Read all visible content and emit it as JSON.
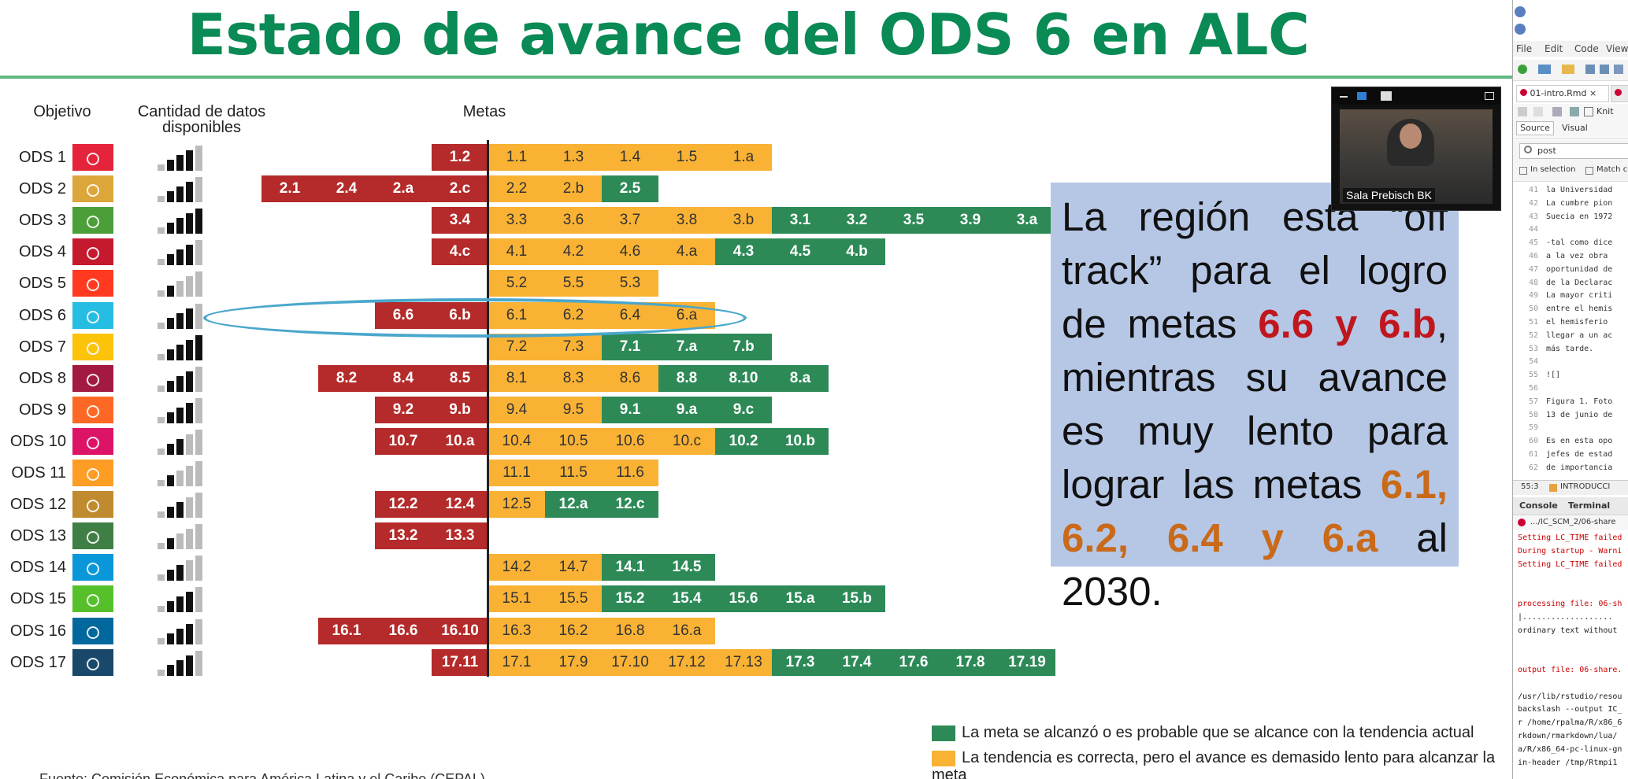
{
  "slide": {
    "title": "Estado de avance del ODS 6 en ALC",
    "headers": {
      "objetivo": "Objetivo",
      "cantidad": "Cantidad de datos disponibles",
      "metas": "Metas"
    },
    "rows": [
      {
        "label": "ODS 1",
        "icon_color": "#e5243b",
        "bars": [
          1,
          2,
          3,
          3,
          1
        ],
        "red": [
          "1.2"
        ],
        "orange": [
          "1.1",
          "1.3",
          "1.4",
          "1.5",
          "1.a"
        ],
        "green": []
      },
      {
        "label": "ODS 2",
        "icon_color": "#dda63a",
        "bars": [
          1,
          2,
          3,
          3,
          1
        ],
        "red": [
          "2.1",
          "2.4",
          "2.a",
          "2.c"
        ],
        "orange": [
          "2.2",
          "2.b"
        ],
        "green": [
          "2.5"
        ]
      },
      {
        "label": "ODS 3",
        "icon_color": "#4c9f38",
        "bars": [
          1,
          2,
          3,
          3,
          3
        ],
        "red": [
          "3.4"
        ],
        "orange": [
          "3.3",
          "3.6",
          "3.7",
          "3.8",
          "3.b"
        ],
        "green": [
          "3.1",
          "3.2",
          "3.5",
          "3.9",
          "3.a"
        ]
      },
      {
        "label": "ODS 4",
        "icon_color": "#c5192d",
        "bars": [
          1,
          2,
          3,
          3,
          1
        ],
        "red": [
          "4.c"
        ],
        "orange": [
          "4.1",
          "4.2",
          "4.6",
          "4.a"
        ],
        "green": [
          "4.3",
          "4.5",
          "4.b"
        ]
      },
      {
        "label": "ODS 5",
        "icon_color": "#ff3a21",
        "bars": [
          1,
          2,
          1,
          1,
          1
        ],
        "red": [],
        "orange": [
          "5.2",
          "5.5",
          "5.3"
        ],
        "green": []
      },
      {
        "label": "ODS 6",
        "icon_color": "#26bde2",
        "bars": [
          1,
          2,
          3,
          3,
          1
        ],
        "red": [
          "6.6",
          "6.b"
        ],
        "orange": [
          "6.1",
          "6.2",
          "6.4",
          "6.a"
        ],
        "green": []
      },
      {
        "label": "ODS 7",
        "icon_color": "#fcc30b",
        "bars": [
          1,
          2,
          3,
          3,
          3
        ],
        "red": [],
        "orange": [
          "7.2",
          "7.3"
        ],
        "green": [
          "7.1",
          "7.a",
          "7.b"
        ]
      },
      {
        "label": "ODS 8",
        "icon_color": "#a21942",
        "bars": [
          1,
          2,
          3,
          3,
          1
        ],
        "red": [
          "8.2",
          "8.4",
          "8.5"
        ],
        "orange": [
          "8.1",
          "8.3",
          "8.6"
        ],
        "green": [
          "8.8",
          "8.10",
          "8.a"
        ]
      },
      {
        "label": "ODS 9",
        "icon_color": "#fd6925",
        "bars": [
          1,
          2,
          3,
          3,
          1
        ],
        "red": [
          "9.2",
          "9.b"
        ],
        "orange": [
          "9.4",
          "9.5"
        ],
        "green": [
          "9.1",
          "9.a",
          "9.c"
        ]
      },
      {
        "label": "ODS 10",
        "icon_color": "#dd1367",
        "bars": [
          1,
          2,
          3,
          1,
          1
        ],
        "red": [
          "10.7",
          "10.a"
        ],
        "orange": [
          "10.4",
          "10.5",
          "10.6",
          "10.c"
        ],
        "green": [
          "10.2",
          "10.b"
        ]
      },
      {
        "label": "ODS 11",
        "icon_color": "#fd9d24",
        "bars": [
          1,
          2,
          1,
          1,
          1
        ],
        "red": [],
        "orange": [
          "11.1",
          "11.5",
          "11.6"
        ],
        "green": []
      },
      {
        "label": "ODS 12",
        "icon_color": "#bf8b2e",
        "bars": [
          1,
          2,
          3,
          1,
          1
        ],
        "red": [
          "12.2",
          "12.4"
        ],
        "orange": [
          "12.5"
        ],
        "green": [
          "12.a",
          "12.c"
        ]
      },
      {
        "label": "ODS 13",
        "icon_color": "#3f7e44",
        "bars": [
          1,
          2,
          1,
          1,
          1
        ],
        "red": [
          "13.2",
          "13.3"
        ],
        "orange": [],
        "green": []
      },
      {
        "label": "ODS 14",
        "icon_color": "#0a97d9",
        "bars": [
          1,
          2,
          3,
          1,
          1
        ],
        "red": [],
        "orange": [
          "14.2",
          "14.7"
        ],
        "green": [
          "14.1",
          "14.5"
        ]
      },
      {
        "label": "ODS 15",
        "icon_color": "#56c02b",
        "bars": [
          1,
          2,
          3,
          3,
          1
        ],
        "red": [],
        "orange": [
          "15.1",
          "15.5"
        ],
        "green": [
          "15.2",
          "15.4",
          "15.6",
          "15.a",
          "15.b"
        ]
      },
      {
        "label": "ODS 16",
        "icon_color": "#00689d",
        "bars": [
          1,
          2,
          3,
          3,
          1
        ],
        "red": [
          "16.1",
          "16.6",
          "16.10"
        ],
        "orange": [
          "16.3",
          "16.2",
          "16.8",
          "16.a"
        ],
        "green": []
      },
      {
        "label": "ODS 17",
        "icon_color": "#19486a",
        "bars": [
          1,
          2,
          3,
          3,
          1
        ],
        "red": [
          "17.11"
        ],
        "orange": [
          "17.1",
          "17.9",
          "17.10",
          "17.12",
          "17.13"
        ],
        "green": [
          "17.3",
          "17.4",
          "17.6",
          "17.8",
          "17.19"
        ]
      }
    ],
    "callout": {
      "p1": "La región esta “off track” para el logro de metas ",
      "p1_red": "6.6 y 6.b",
      "p2": ", mientras su avance es muy lento para lograr las metas ",
      "p2_orange": "6.1, 6.2, 6.4 y 6.a",
      "p3": " al 2030."
    },
    "legend": [
      {
        "color": "#2d8a57",
        "label": "La meta se alcanzó o es probable que se alcance con la tendencia actual"
      },
      {
        "color": "#f9b234",
        "label": "La tendencia es correcta, pero el avance es demasido lento para alcanzar la meta"
      }
    ],
    "source": "Fuente: Comisión Económica para América Latina y el Caribe (CEPAL)"
  },
  "video": {
    "caption": "Sala Prebisch BK"
  },
  "rstudio": {
    "menu": [
      "File",
      "Edit",
      "Code",
      "View"
    ],
    "tab_file": "01-intro.Rmd",
    "tab_knit": "Knit",
    "mode_source": "Source",
    "mode_visual": "Visual",
    "search_value": "post",
    "in_selection": "In selection",
    "match_case": "Match c",
    "editor_lines": [
      {
        "n": "41",
        "t": "la Universidad"
      },
      {
        "n": "42",
        "t": "La cumbre pion"
      },
      {
        "n": "43",
        "t": "Suecia en 1972"
      },
      {
        "n": "44",
        "t": ""
      },
      {
        "n": "45",
        "t": "-tal como dice"
      },
      {
        "n": "46",
        "t": "a la vez obra"
      },
      {
        "n": "47",
        "t": "oportunidad de"
      },
      {
        "n": "48",
        "t": "de la Declarac"
      },
      {
        "n": "49",
        "t": "La mayor criti"
      },
      {
        "n": "50",
        "t": "entre el hemis"
      },
      {
        "n": "51",
        "t": "el hemisferio"
      },
      {
        "n": "52",
        "t": "llegar a un ac"
      },
      {
        "n": "53",
        "t": "más tarde."
      },
      {
        "n": "54",
        "t": ""
      },
      {
        "n": "55",
        "t": "![]"
      },
      {
        "n": "56",
        "t": ""
      },
      {
        "n": "57",
        "t": "Figura 1. Foto"
      },
      {
        "n": "58",
        "t": "13 de junio de"
      },
      {
        "n": "59",
        "t": ""
      },
      {
        "n": "60",
        "t": "Es en esta opo"
      },
      {
        "n": "61",
        "t": "jefes de estad"
      },
      {
        "n": "62",
        "t": "de importancia"
      }
    ],
    "cursor_pos": "55:3",
    "section": "INTRODUCCI",
    "console_tab": "Console",
    "terminal_tab": "Terminal",
    "console_path": ".../IC_SCM_2/06-share",
    "console_lines": [
      {
        "t": "Setting LC_TIME failed",
        "k": "err"
      },
      {
        "t": "During startup - Warni",
        "k": "err"
      },
      {
        "t": "Setting LC_TIME failed",
        "k": "err"
      },
      {
        "t": "",
        "k": "norm"
      },
      {
        "t": "",
        "k": "norm"
      },
      {
        "t": "processing file: 06-sh",
        "k": "err"
      },
      {
        "t": "  |...................",
        "k": "norm"
      },
      {
        "t": "  ordinary text without",
        "k": "norm"
      },
      {
        "t": "",
        "k": "norm"
      },
      {
        "t": "",
        "k": "norm"
      },
      {
        "t": "output file: 06-share.",
        "k": "err"
      },
      {
        "t": "",
        "k": "norm"
      },
      {
        "t": "/usr/lib/rstudio/resou",
        "k": "norm"
      },
      {
        "t": "backslash --output IC_",
        "k": "norm"
      },
      {
        "t": "r /home/rpalma/R/x86_6",
        "k": "norm"
      },
      {
        "t": "rkdown/rmarkdown/lua/",
        "k": "norm"
      },
      {
        "t": "a/R/x86_64-pc-linux-gn",
        "k": "norm"
      },
      {
        "t": "in-header /tmp/Rtmpi1",
        "k": "norm"
      }
    ]
  }
}
